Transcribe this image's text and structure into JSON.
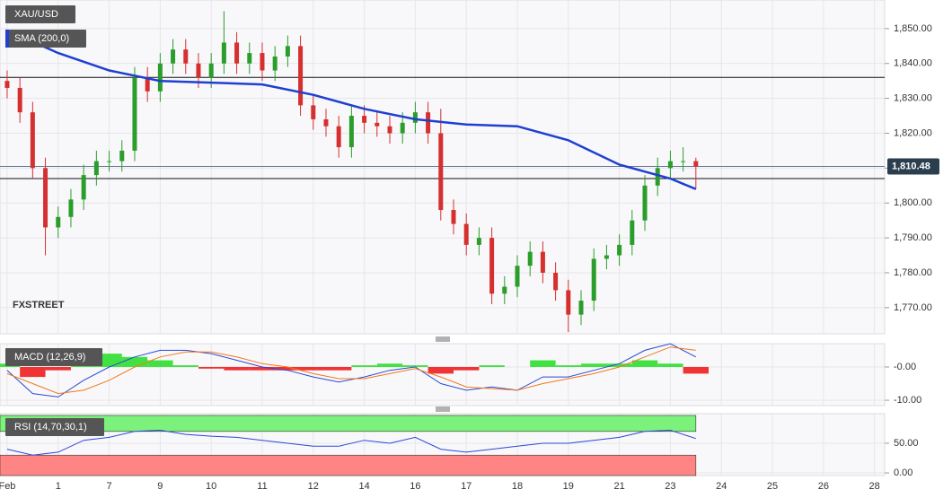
{
  "chart_data": [
    {
      "type": "candlestick",
      "title": "XAU/USD",
      "watermark": "FXSTREET",
      "x": [
        0,
        0.25,
        0.5,
        0.75,
        1,
        1.25,
        1.5,
        1.75,
        2,
        2.25,
        2.5,
        2.75,
        3,
        3.25,
        3.5,
        3.75,
        4,
        4.25,
        4.5,
        4.75,
        5,
        5.25,
        5.5,
        5.75,
        6,
        6.25,
        6.5,
        6.75,
        7,
        7.25,
        7.5,
        7.75,
        8,
        8.25,
        8.5,
        8.75,
        9,
        9.25,
        9.5,
        9.75,
        10,
        10.25,
        10.5,
        10.75,
        11,
        11.25,
        11.5,
        11.75,
        12,
        12.25,
        12.5,
        12.75,
        13,
        13.25,
        13.5
      ],
      "open": [
        1835,
        1833,
        1826,
        1810,
        1793,
        1796,
        1801,
        1808,
        1812,
        1812,
        1815,
        1836,
        1832,
        1840,
        1844,
        1840,
        1836,
        1840,
        1846,
        1840,
        1843,
        1838,
        1842,
        1845,
        1828,
        1824,
        1822,
        1816,
        1825,
        1823,
        1822,
        1820,
        1823,
        1826,
        1820,
        1798,
        1794,
        1788,
        1790,
        1774,
        1776,
        1782,
        1786,
        1780,
        1775,
        1768,
        1772,
        1784,
        1785,
        1788,
        1795,
        1805,
        1810,
        1812,
        1812
      ],
      "high": [
        1838,
        1836,
        1829,
        1813,
        1799,
        1804,
        1811,
        1815,
        1815,
        1818,
        1839,
        1839,
        1843,
        1847,
        1847,
        1843,
        1843,
        1855,
        1849,
        1846,
        1846,
        1845,
        1848,
        1848,
        1831,
        1827,
        1825,
        1828,
        1828,
        1826,
        1825,
        1826,
        1829,
        1829,
        1827,
        1801,
        1797,
        1793,
        1793,
        1779,
        1785,
        1789,
        1789,
        1783,
        1778,
        1775,
        1787,
        1788,
        1791,
        1798,
        1808,
        1813,
        1815,
        1816,
        1813
      ],
      "low": [
        1830,
        1823,
        1807,
        1785,
        1790,
        1793,
        1798,
        1805,
        1809,
        1809,
        1812,
        1829,
        1829,
        1837,
        1837,
        1833,
        1833,
        1837,
        1837,
        1837,
        1835,
        1835,
        1839,
        1825,
        1821,
        1819,
        1813,
        1813,
        1820,
        1819,
        1817,
        1817,
        1820,
        1817,
        1795,
        1791,
        1785,
        1785,
        1771,
        1771,
        1773,
        1779,
        1777,
        1772,
        1763,
        1765,
        1769,
        1781,
        1782,
        1785,
        1792,
        1802,
        1807,
        1809,
        1804
      ],
      "close": [
        1833,
        1826,
        1810,
        1793,
        1796,
        1801,
        1808,
        1812,
        1812,
        1815,
        1836,
        1832,
        1840,
        1844,
        1840,
        1836,
        1840,
        1846,
        1840,
        1843,
        1838,
        1842,
        1845,
        1828,
        1824,
        1822,
        1816,
        1825,
        1823,
        1822,
        1820,
        1823,
        1826,
        1820,
        1798,
        1794,
        1788,
        1790,
        1774,
        1776,
        1782,
        1786,
        1780,
        1775,
        1768,
        1772,
        1784,
        1785,
        1788,
        1795,
        1805,
        1810,
        1812,
        1812,
        1810.48
      ],
      "up_color": "#2a9d2a",
      "down_color": "#d62f2f",
      "lines": [
        {
          "name": "SMA (200,0)",
          "color": "#1f3fd1",
          "x": [
            0,
            1,
            2,
            3,
            4,
            5,
            6,
            7,
            8,
            9,
            10,
            11,
            12,
            13,
            13.5
          ],
          "values": [
            1849.5,
            1843,
            1838,
            1835,
            1834.5,
            1834,
            1831,
            1827,
            1824,
            1822.5,
            1822,
            1818,
            1811,
            1807,
            1804
          ]
        }
      ],
      "levels": [
        1836,
        1807
      ],
      "last_price": {
        "value": 1810.48,
        "label": "1,810.48"
      },
      "ylim": [
        1762.5,
        1858.2
      ],
      "yticks": [
        {
          "value": 1770,
          "label": "1,770.00"
        },
        {
          "value": 1780,
          "label": "1,780.00"
        },
        {
          "value": 1790,
          "label": "1,790.00"
        },
        {
          "value": 1800,
          "label": "1,800.00"
        },
        {
          "value": 1810,
          "label": "1,810.00"
        },
        {
          "value": 1820,
          "label": "1,820.00"
        },
        {
          "value": 1830,
          "label": "1,830.00"
        },
        {
          "value": 1840,
          "label": "1,840.00"
        },
        {
          "value": 1850,
          "label": "1,850.00"
        }
      ],
      "xlim": [
        -0.14,
        17.2
      ],
      "xticks": [
        {
          "value": 0,
          "label": "Feb"
        },
        1,
        {
          "value": 2,
          "label": "7"
        },
        {
          "value": 3,
          "label": "9"
        },
        {
          "value": 4,
          "label": "10"
        },
        {
          "value": 5,
          "label": "11"
        },
        {
          "value": 6,
          "label": "12"
        },
        {
          "value": 7,
          "label": "14"
        },
        {
          "value": 8,
          "label": "16"
        },
        {
          "value": 9,
          "label": "17"
        },
        {
          "value": 10,
          "label": "18"
        },
        {
          "value": 11,
          "label": "19"
        },
        {
          "value": 12,
          "label": "21"
        },
        {
          "value": 13,
          "label": "23"
        },
        {
          "value": 14,
          "label": "24"
        },
        {
          "value": 15,
          "label": "25"
        },
        {
          "value": 16,
          "label": "26"
        },
        {
          "value": 17,
          "label": "28"
        }
      ],
      "grid": true
    },
    {
      "type": "macd",
      "title": "MACD (12,26,9)",
      "x": [
        0,
        0.5,
        1,
        1.5,
        2,
        2.5,
        3,
        3.5,
        4,
        4.5,
        5,
        5.5,
        6,
        6.5,
        7,
        7.5,
        8,
        8.5,
        9,
        9.5,
        10,
        10.5,
        11,
        11.5,
        12,
        12.5,
        13,
        13.5
      ],
      "series": [
        {
          "color": "#2b46d6",
          "values": [
            -1,
            -8,
            -9,
            -4,
            0,
            3,
            5,
            5,
            4,
            2,
            0,
            -1,
            -3,
            -4.5,
            -3,
            -1,
            0,
            -5,
            -7,
            -6,
            -7,
            -3,
            -3,
            -1,
            1,
            5,
            7,
            3
          ]
        },
        {
          "color": "#f07a1a",
          "values": [
            -2,
            -5,
            -8,
            -7,
            -4,
            0,
            3,
            4.5,
            4.5,
            3,
            1,
            0,
            -2,
            -3.5,
            -3.5,
            -2,
            -0.5,
            -3,
            -6,
            -6.5,
            -7,
            -5,
            -3.5,
            -2,
            0,
            3,
            6,
            5
          ]
        }
      ],
      "histogram": {
        "up_color": "#22dd22",
        "down_color": "#ee1111",
        "values": [
          1,
          -3,
          -1,
          3,
          4,
          3,
          2,
          0.5,
          -0.5,
          -1,
          -1,
          -1,
          -1,
          -1,
          0.5,
          1,
          0.5,
          -2,
          -1,
          0.5,
          0,
          2,
          0.5,
          1,
          1,
          2,
          1,
          -2
        ]
      },
      "ylim": [
        -11.6,
        7
      ],
      "yticks": [
        {
          "value": 0,
          "label": "-0.00"
        },
        {
          "value": -10,
          "label": "-10.00"
        }
      ]
    },
    {
      "type": "rsi",
      "title": "RSI (14,70,30,1)",
      "x": [
        0,
        0.5,
        1,
        1.5,
        2,
        2.5,
        3,
        3.5,
        4,
        4.5,
        5,
        5.5,
        6,
        6.5,
        7,
        7.5,
        8,
        8.5,
        9,
        9.5,
        10,
        10.5,
        11,
        11.5,
        12,
        12.5,
        13,
        13.5
      ],
      "values": [
        40,
        30,
        35,
        55,
        60,
        70,
        72,
        65,
        62,
        60,
        55,
        50,
        45,
        45,
        55,
        50,
        60,
        40,
        35,
        40,
        45,
        50,
        50,
        55,
        60,
        70,
        72,
        58
      ],
      "color": "#2b46d6",
      "overbought": 70,
      "oversold": 30,
      "overbought_color": "#7cf27c",
      "oversold_color": "#ff8585",
      "ylim": [
        -4.5,
        100
      ],
      "yticks": [
        {
          "value": 50,
          "label": "50.00"
        },
        {
          "value": 0,
          "label": "0.00"
        }
      ]
    }
  ]
}
